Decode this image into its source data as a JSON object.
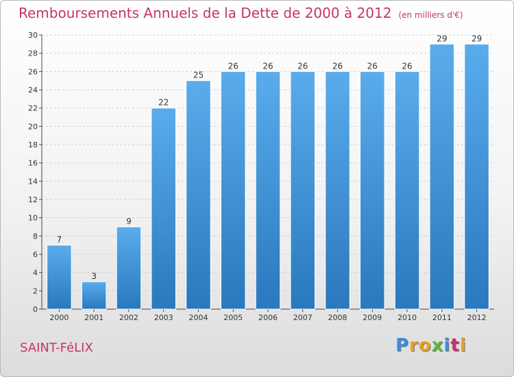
{
  "header": {
    "title": "Remboursements Annuels de la Dette de 2000 à 2012",
    "unit": "(en milliers d'€)"
  },
  "footer": {
    "commune": "SAINT-FéLIX",
    "logo": [
      "P",
      "r",
      "o",
      "x",
      "i",
      "t",
      "i"
    ]
  },
  "colors": {
    "title": "#c4336d",
    "bar_top": "#5aacec",
    "bar_bottom": "#2a78bd",
    "logo": [
      "#3a8fd8",
      "#e8a01f",
      "#e8a01f",
      "#5fb53a",
      "#3a8fd8",
      "#c4336d",
      "#e8a01f"
    ]
  },
  "chart_data": {
    "type": "bar",
    "categories": [
      "2000",
      "2001",
      "2002",
      "2003",
      "2004",
      "2005",
      "2006",
      "2007",
      "2008",
      "2009",
      "2010",
      "2011",
      "2012"
    ],
    "values": [
      7,
      3,
      9,
      22,
      25,
      26,
      26,
      26,
      26,
      26,
      26,
      29,
      29
    ],
    "title": "Remboursements Annuels de la Dette de 2000 à 2012",
    "xlabel": "",
    "ylabel": "",
    "ylim": [
      0,
      30
    ],
    "yticks": [
      0,
      2,
      4,
      6,
      8,
      10,
      12,
      14,
      16,
      18,
      20,
      22,
      24,
      26,
      28,
      30
    ],
    "grid": true,
    "legend": "none"
  }
}
